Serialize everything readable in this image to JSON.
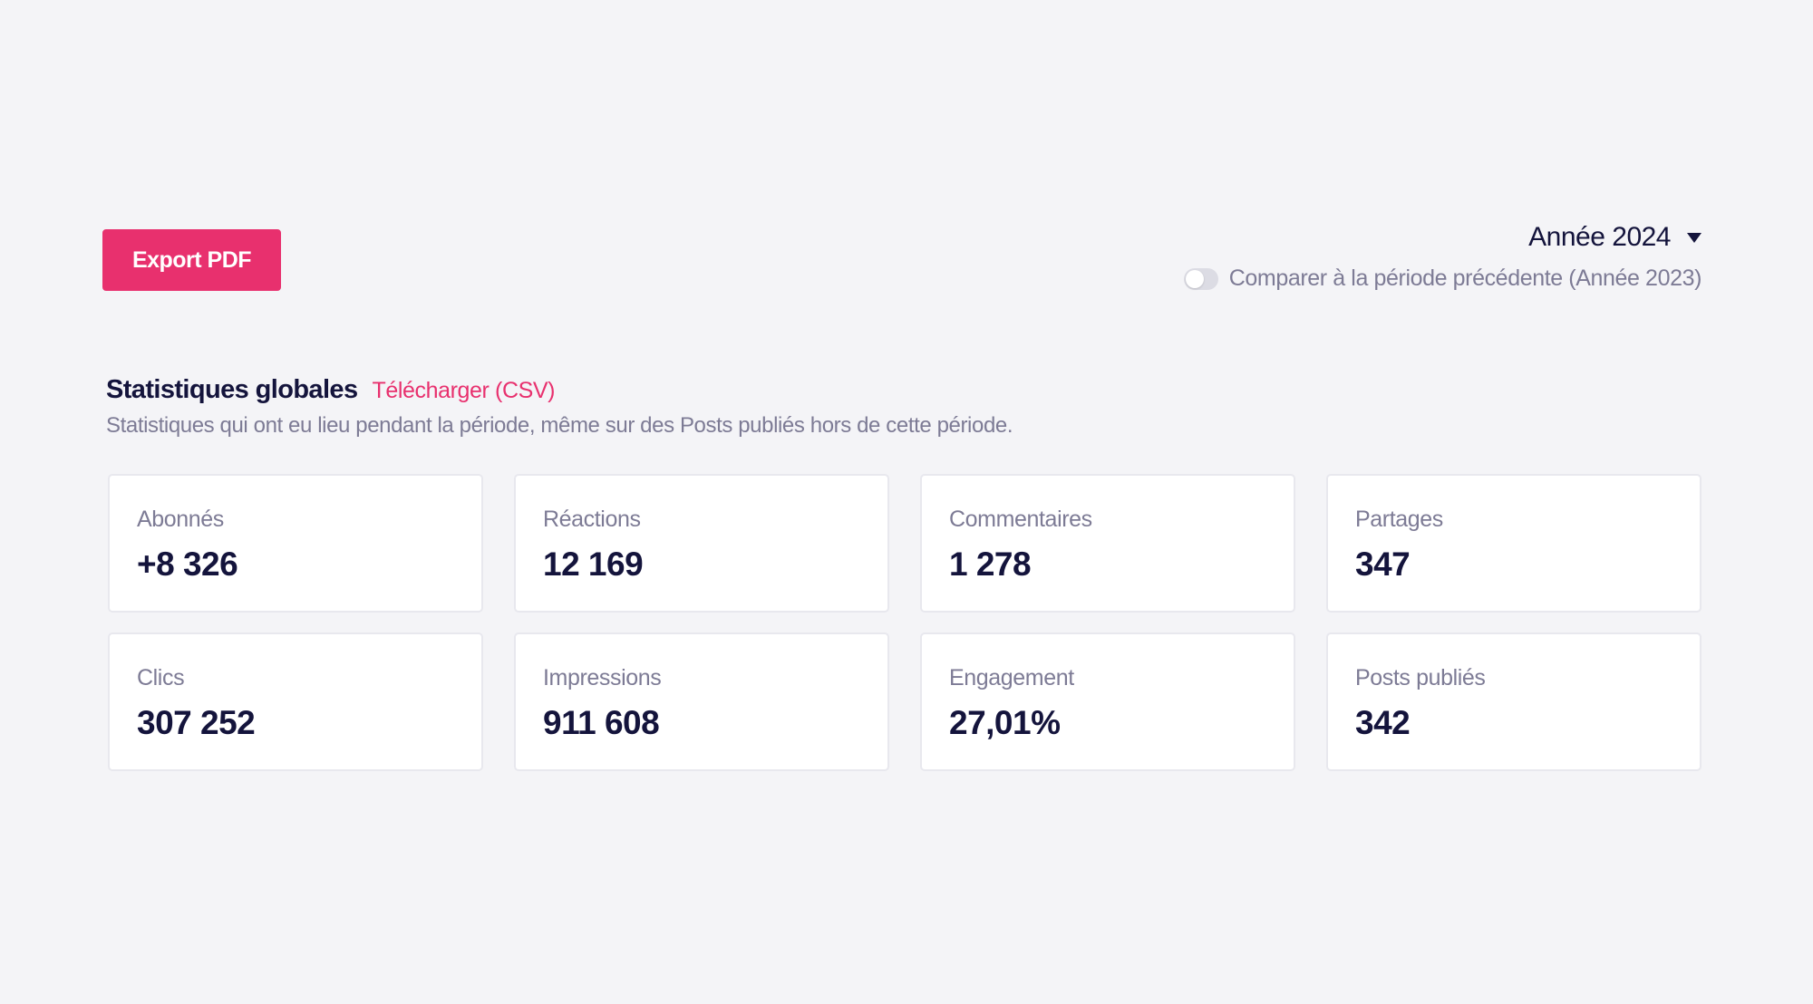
{
  "toolbar": {
    "export_label": "Export PDF"
  },
  "period": {
    "selected": "Année 2024",
    "compare_label": "Comparer à la période précédente (Année 2023)",
    "compare_enabled": false
  },
  "section": {
    "title": "Statistiques globales",
    "csv_link": "Télécharger (CSV)",
    "description": "Statistiques qui ont eu lieu pendant la période, même sur des Posts publiés hors de cette période."
  },
  "stats": [
    {
      "label": "Abonnés",
      "value": "+8 326"
    },
    {
      "label": "Réactions",
      "value": "12 169"
    },
    {
      "label": "Commentaires",
      "value": "1 278"
    },
    {
      "label": "Partages",
      "value": "347"
    },
    {
      "label": "Clics",
      "value": "307 252"
    },
    {
      "label": "Impressions",
      "value": "911 608"
    },
    {
      "label": "Engagement",
      "value": "27,01%"
    },
    {
      "label": "Posts publiés",
      "value": "342"
    }
  ],
  "colors": {
    "accent": "#e8306e",
    "text": "#14143c",
    "muted": "#7d7b95",
    "background": "#f4f4f7"
  }
}
